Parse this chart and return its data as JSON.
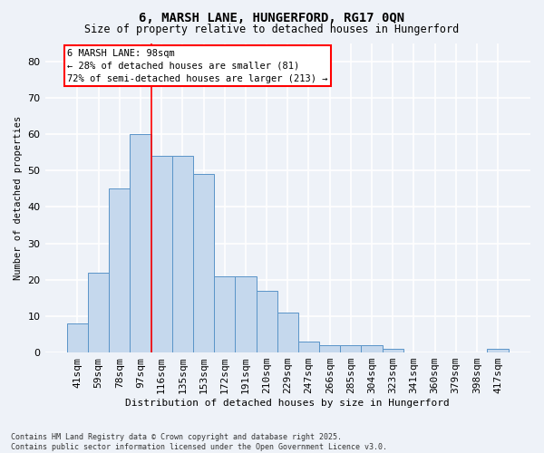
{
  "title_line1": "6, MARSH LANE, HUNGERFORD, RG17 0QN",
  "title_line2": "Size of property relative to detached houses in Hungerford",
  "xlabel": "Distribution of detached houses by size in Hungerford",
  "ylabel": "Number of detached properties",
  "categories": [
    "41sqm",
    "59sqm",
    "78sqm",
    "97sqm",
    "116sqm",
    "135sqm",
    "153sqm",
    "172sqm",
    "191sqm",
    "210sqm",
    "229sqm",
    "247sqm",
    "266sqm",
    "285sqm",
    "304sqm",
    "323sqm",
    "341sqm",
    "360sqm",
    "379sqm",
    "398sqm",
    "417sqm"
  ],
  "values": [
    8,
    22,
    45,
    60,
    54,
    54,
    49,
    21,
    21,
    17,
    11,
    3,
    2,
    2,
    2,
    1,
    0,
    0,
    0,
    0,
    1
  ],
  "bar_color": "#c5d8ed",
  "bar_edge_color": "#5a94c8",
  "red_line_x": 3.5,
  "annotation_text": "6 MARSH LANE: 98sqm\n← 28% of detached houses are smaller (81)\n72% of semi-detached houses are larger (213) →",
  "annotation_box_color": "white",
  "annotation_box_edge_color": "red",
  "ylim": [
    0,
    85
  ],
  "yticks": [
    0,
    10,
    20,
    30,
    40,
    50,
    60,
    70,
    80
  ],
  "background_color": "#eef2f8",
  "grid_color": "white",
  "footer_line1": "Contains HM Land Registry data © Crown copyright and database right 2025.",
  "footer_line2": "Contains public sector information licensed under the Open Government Licence v3.0."
}
